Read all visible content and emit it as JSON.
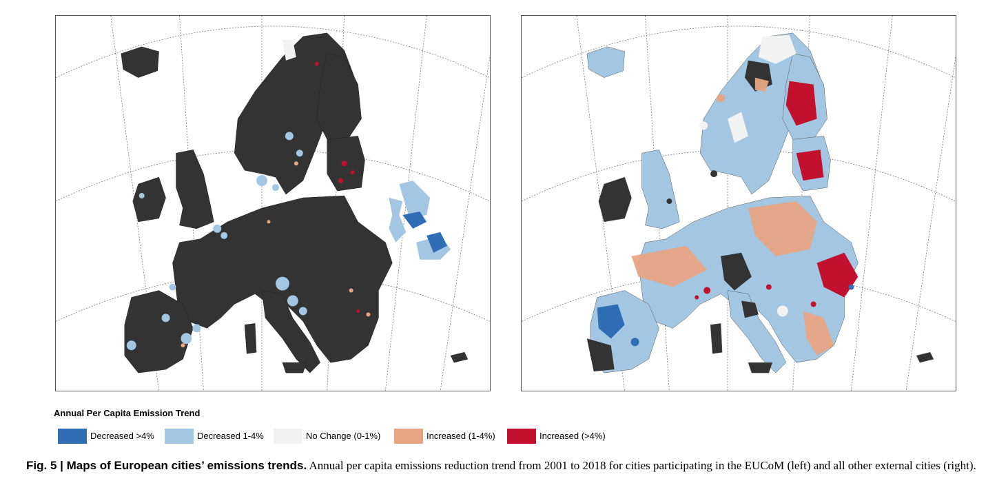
{
  "legend": {
    "title": "Annual Per Capita Emission Trend",
    "items": [
      {
        "label": "Decreased >4%",
        "color": "#2f6eb5"
      },
      {
        "label": "Decreased 1-4%",
        "color": "#a3c7e2"
      },
      {
        "label": "No Change (0-1%)",
        "color": "#f2f2f2"
      },
      {
        "label": "Increased (1-4%)",
        "color": "#e8a584"
      },
      {
        "label": "Increased (>4%)",
        "color": "#c1112f"
      }
    ]
  },
  "caption": {
    "bold": "Fig. 5 | Maps of European cities’ emissions trends.",
    "text": " Annual per capita emissions reduction trend from 2001 to 2018 for cities participating in the EUCoM (left) and all other external cities (right)."
  },
  "maps": {
    "left": {
      "subject": "EUCoM cities",
      "base_color": "#333333"
    },
    "right": {
      "subject": "external cities",
      "base_color": "#a3c7e2"
    }
  },
  "colors": {
    "land_no_data": "#333333",
    "graticule": "#777777",
    "border": "#555555"
  }
}
